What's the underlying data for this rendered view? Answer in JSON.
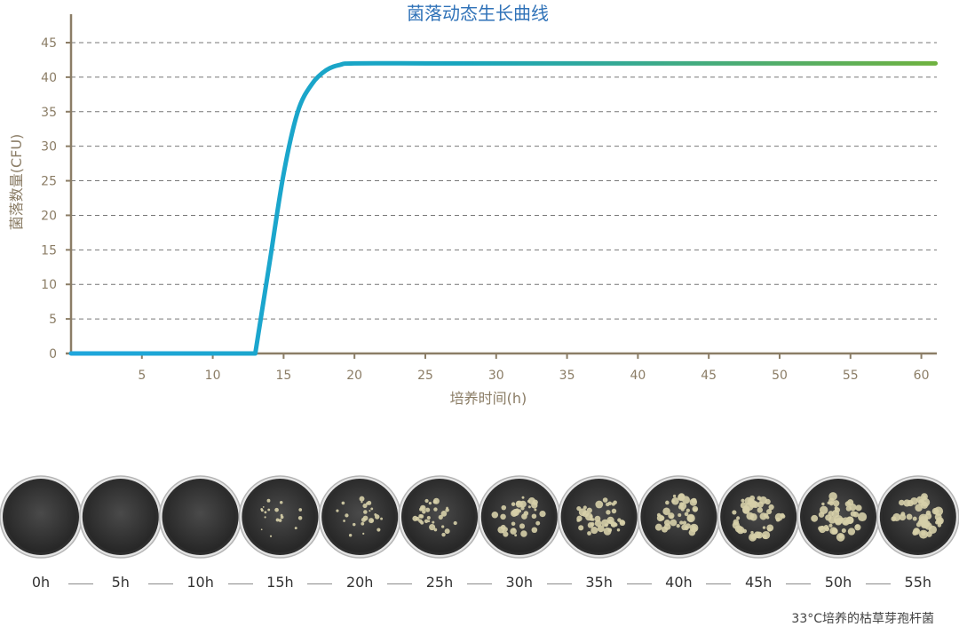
{
  "chart_data": {
    "type": "line",
    "title": "菌落动态生长曲线",
    "xlabel": "培养时间(h)",
    "ylabel": "菌落数量(CFU)",
    "xlim": [
      0,
      61
    ],
    "ylim": [
      0,
      45
    ],
    "xticks": [
      5,
      10,
      15,
      20,
      25,
      30,
      35,
      40,
      45,
      50,
      55,
      60
    ],
    "yticks": [
      0,
      5,
      10,
      15,
      20,
      25,
      30,
      35,
      40,
      45
    ],
    "grid": "horizontal-dashed",
    "series": [
      {
        "x": [
          0,
          13,
          14,
          15,
          16,
          17,
          18,
          19,
          20,
          25,
          30,
          35,
          40,
          45,
          50,
          55,
          61
        ],
        "y": [
          0,
          0,
          13,
          26,
          35,
          39,
          41,
          41.8,
          42,
          42,
          42,
          42,
          42,
          42,
          42,
          42,
          42
        ]
      }
    ],
    "colors": {
      "line_start": "#1fa6dc",
      "line_mid": "#17a5be",
      "line_end": "#6fb23f",
      "axis": "#8b7d66",
      "grid": "#777777",
      "title": "#2f72b8",
      "tick": "#8b7d66"
    }
  },
  "dishes": [
    {
      "time": "0h",
      "colonies": 0
    },
    {
      "time": "5h",
      "colonies": 0
    },
    {
      "time": "10h",
      "colonies": 0
    },
    {
      "time": "15h",
      "colonies": 0.3
    },
    {
      "time": "20h",
      "colonies": 0.45
    },
    {
      "time": "25h",
      "colonies": 0.6
    },
    {
      "time": "30h",
      "colonies": 0.75
    },
    {
      "time": "35h",
      "colonies": 0.85
    },
    {
      "time": "40h",
      "colonies": 0.9
    },
    {
      "time": "45h",
      "colonies": 0.95
    },
    {
      "time": "50h",
      "colonies": 1.0
    },
    {
      "time": "55h",
      "colonies": 1.0
    }
  ],
  "caption": "33°C培养的枯草芽孢杆菌"
}
